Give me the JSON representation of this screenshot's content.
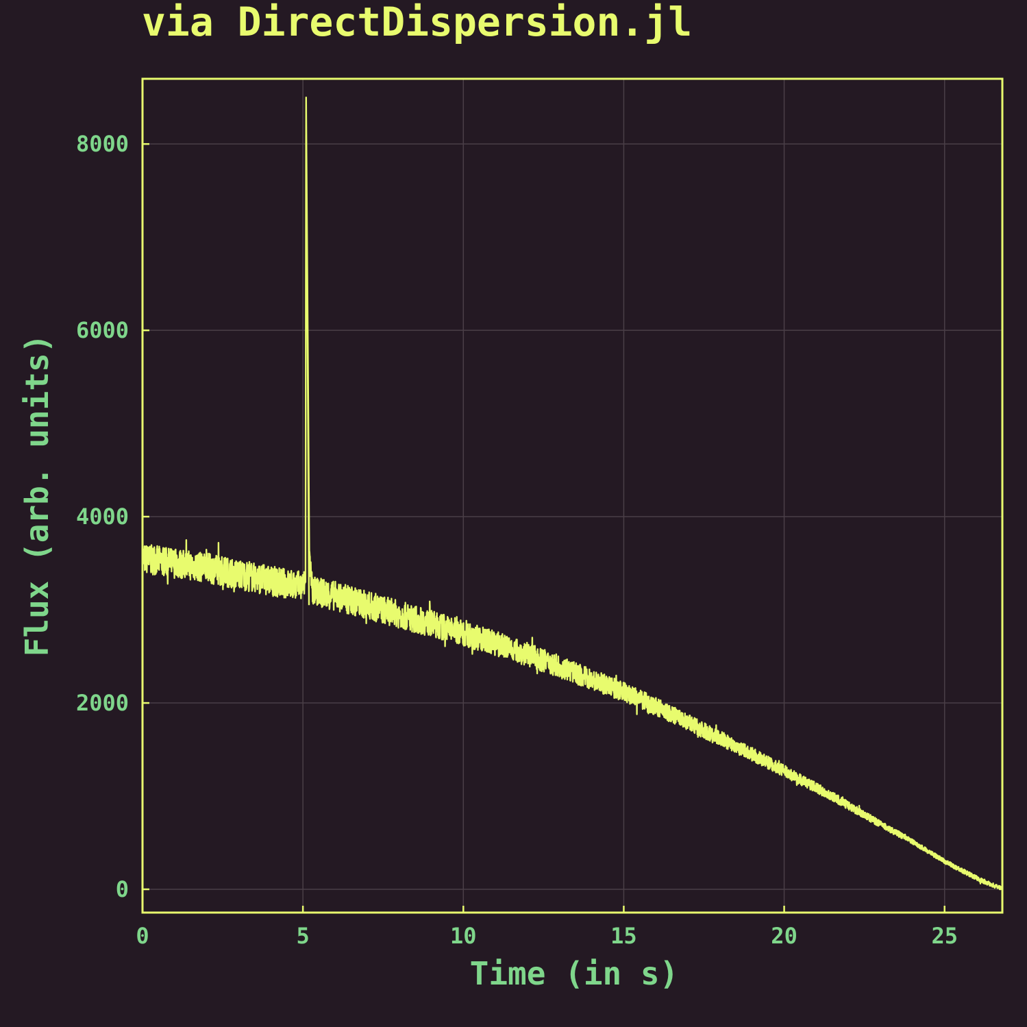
{
  "chart_data": {
    "type": "line",
    "title": "via DirectDispersion.jl",
    "xlabel": "Time (in s)",
    "ylabel": "Flux (arb. units)",
    "xlim": [
      0,
      26.8
    ],
    "ylim": [
      -250,
      8700
    ],
    "x_ticks": [
      0,
      5,
      10,
      15,
      20,
      25
    ],
    "y_ticks": [
      0,
      2000,
      4000,
      6000,
      8000
    ],
    "x_tick_labels": [
      "0",
      "5",
      "10",
      "15",
      "20",
      "25"
    ],
    "y_tick_labels": [
      "0",
      "2000",
      "4000",
      "6000",
      "8000"
    ],
    "grid": true,
    "legend": "none",
    "colors": {
      "background": "#241923",
      "series": "#e8fb6e",
      "labels": "#7fd68b",
      "grid": "#4a3f47"
    },
    "series": [
      {
        "x": [
          0,
          1,
          2,
          3,
          4,
          5,
          5.08,
          5.1,
          5.13,
          5.2,
          5.3,
          6,
          7,
          8,
          9,
          10,
          11,
          12,
          13,
          14,
          15,
          16,
          17,
          18,
          19,
          20,
          21,
          22,
          23,
          24,
          25,
          26,
          26.8
        ],
        "y": [
          3550,
          3500,
          3450,
          3380,
          3310,
          3250,
          3300,
          8500,
          7000,
          3600,
          3200,
          3150,
          3050,
          2950,
          2850,
          2750,
          2640,
          2520,
          2390,
          2250,
          2120,
          1960,
          1790,
          1620,
          1450,
          1270,
          1090,
          900,
          700,
          510,
          300,
          120,
          0
        ],
        "noise_amplitude": 320
      }
    ]
  }
}
